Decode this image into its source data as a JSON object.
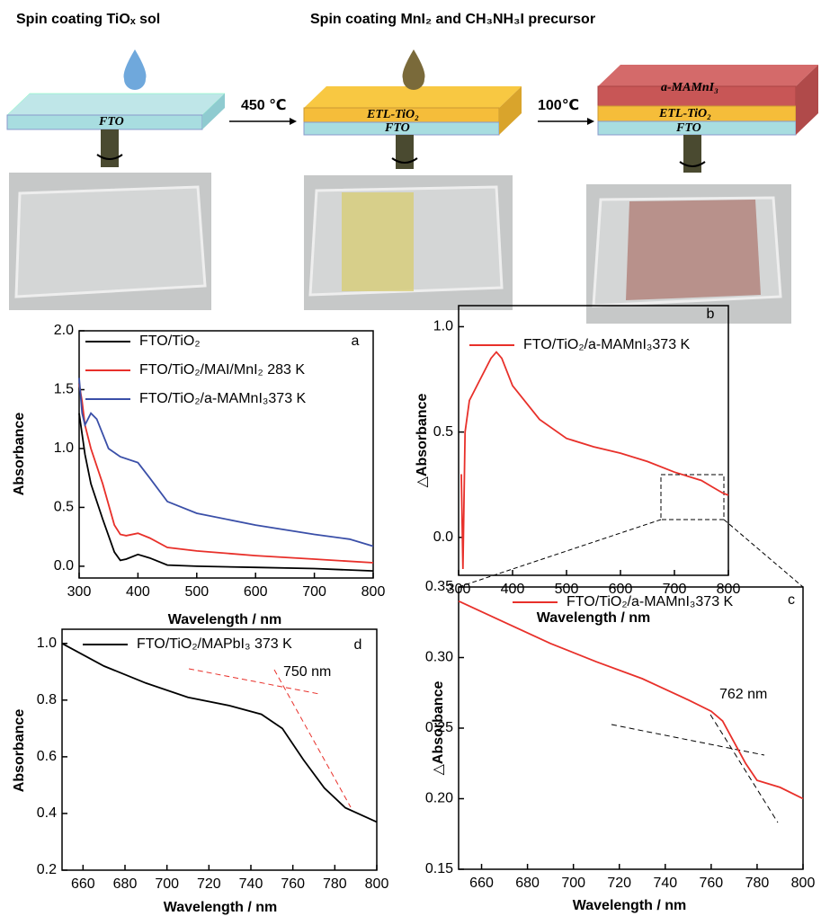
{
  "schematic": {
    "titles": [
      "Spin coating TiOₓ sol",
      "Spin coating MnI₂ and CH₃NH₃I precursor"
    ],
    "step1": {
      "layers": [
        "FTO"
      ]
    },
    "arrow1": "450 ℃",
    "step2": {
      "layers": [
        "ETL-TiO₂",
        "FTO"
      ]
    },
    "arrow2": "100℃",
    "step3": {
      "layers": [
        "a-MAMnI₃",
        "ETL-TiO₂",
        "FTO"
      ]
    }
  },
  "chart_data": [
    {
      "type": "line",
      "label": "a",
      "xlabel": "Wavelength / nm",
      "ylabel": "Absorbance",
      "xlim": [
        300,
        800
      ],
      "xticks": [
        300,
        400,
        500,
        600,
        700,
        800
      ],
      "ylim": [
        -0.1,
        2.0
      ],
      "yticks": [
        {
          "value": 0,
          "label": "0.0"
        },
        0.5,
        {
          "value": 1,
          "label": "1.0"
        },
        1.5,
        {
          "value": 2,
          "label": "2.0"
        }
      ],
      "series": [
        {
          "name": "FTO/TiO₂",
          "color": "#000000",
          "x": [
            300,
            310,
            320,
            340,
            360,
            370,
            380,
            400,
            420,
            450,
            500,
            600,
            700,
            800
          ],
          "values": [
            1.3,
            0.95,
            0.7,
            0.4,
            0.12,
            0.05,
            0.06,
            0.1,
            0.07,
            0.01,
            0.0,
            -0.01,
            -0.02,
            -0.04
          ]
        },
        {
          "name": "FTO/TiO₂/MAI/MnI₂ 283 K",
          "color": "#e8302a",
          "x": [
            300,
            305,
            310,
            320,
            340,
            360,
            370,
            380,
            400,
            420,
            450,
            500,
            600,
            700,
            800
          ],
          "values": [
            1.55,
            1.4,
            1.2,
            1.0,
            0.7,
            0.35,
            0.27,
            0.26,
            0.28,
            0.24,
            0.16,
            0.13,
            0.09,
            0.06,
            0.03
          ]
        },
        {
          "name": "FTO/TiO₂/a-MAMnI₃373 K",
          "color": "#3a4fa8",
          "x": [
            300,
            305,
            310,
            320,
            330,
            350,
            370,
            400,
            420,
            450,
            500,
            600,
            700,
            760,
            800
          ],
          "values": [
            1.6,
            1.3,
            1.2,
            1.3,
            1.25,
            1.0,
            0.93,
            0.88,
            0.75,
            0.55,
            0.45,
            0.35,
            0.27,
            0.23,
            0.17
          ]
        }
      ]
    },
    {
      "type": "line",
      "label": "b",
      "xlabel": "Wavelength / nm",
      "ylabel": "△Absorbance",
      "xlim": [
        300,
        800
      ],
      "xticks": [
        300,
        400,
        500,
        600,
        700,
        800
      ],
      "ylim": [
        -0.18,
        1.1
      ],
      "yticks": [
        {
          "value": 0,
          "label": "0.0"
        },
        0.5,
        {
          "value": 1,
          "label": "1.0"
        }
      ],
      "series": [
        {
          "name": "FTO/TiO₂/a-MAMnI₃373 K",
          "color": "#e8302a",
          "x": [
            305,
            308,
            312,
            320,
            340,
            360,
            370,
            380,
            400,
            450,
            500,
            550,
            600,
            650,
            700,
            750,
            770,
            790,
            800
          ],
          "values": [
            0.3,
            -0.15,
            0.5,
            0.65,
            0.75,
            0.85,
            0.88,
            0.85,
            0.72,
            0.56,
            0.47,
            0.43,
            0.4,
            0.36,
            0.31,
            0.27,
            0.24,
            0.21,
            0.2
          ]
        }
      ]
    },
    {
      "type": "line",
      "label": "c",
      "xlabel": "Wavelength / nm",
      "ylabel": "△Absorbance",
      "annotation": "762 nm",
      "xlim": [
        650,
        800
      ],
      "xticks": [
        660,
        680,
        700,
        720,
        740,
        760,
        780,
        800
      ],
      "ylim": [
        0.15,
        0.35
      ],
      "yticks": [
        0.15,
        {
          "value": 0.2,
          "label": "0.20"
        },
        0.25,
        {
          "value": 0.3,
          "label": "0.30"
        },
        0.35
      ],
      "series": [
        {
          "name": "FTO/TiO₂/a-MAMnI₃373 K",
          "color": "#e8302a",
          "x": [
            650,
            670,
            690,
            710,
            730,
            750,
            760,
            765,
            770,
            775,
            780,
            790,
            800
          ],
          "values": [
            0.34,
            0.325,
            0.31,
            0.297,
            0.285,
            0.27,
            0.262,
            0.255,
            0.24,
            0.225,
            0.213,
            0.208,
            0.2
          ]
        }
      ]
    },
    {
      "type": "line",
      "label": "d",
      "xlabel": "Wavelength / nm",
      "ylabel": "Absorbance",
      "annotation": "750 nm",
      "xlim": [
        650,
        800
      ],
      "xticks": [
        660,
        680,
        700,
        720,
        740,
        760,
        780,
        800
      ],
      "ylim": [
        0.2,
        1.05
      ],
      "yticks": [
        0.2,
        0.4,
        0.6,
        0.8,
        {
          "value": 1,
          "label": "1.0"
        }
      ],
      "series": [
        {
          "name": "FTO/TiO₂/MAPbI₃ 373 K",
          "color": "#000000",
          "x": [
            650,
            670,
            690,
            710,
            730,
            745,
            755,
            765,
            775,
            785,
            800
          ],
          "values": [
            1.0,
            0.92,
            0.86,
            0.81,
            0.78,
            0.75,
            0.7,
            0.59,
            0.49,
            0.42,
            0.37
          ]
        }
      ]
    }
  ]
}
